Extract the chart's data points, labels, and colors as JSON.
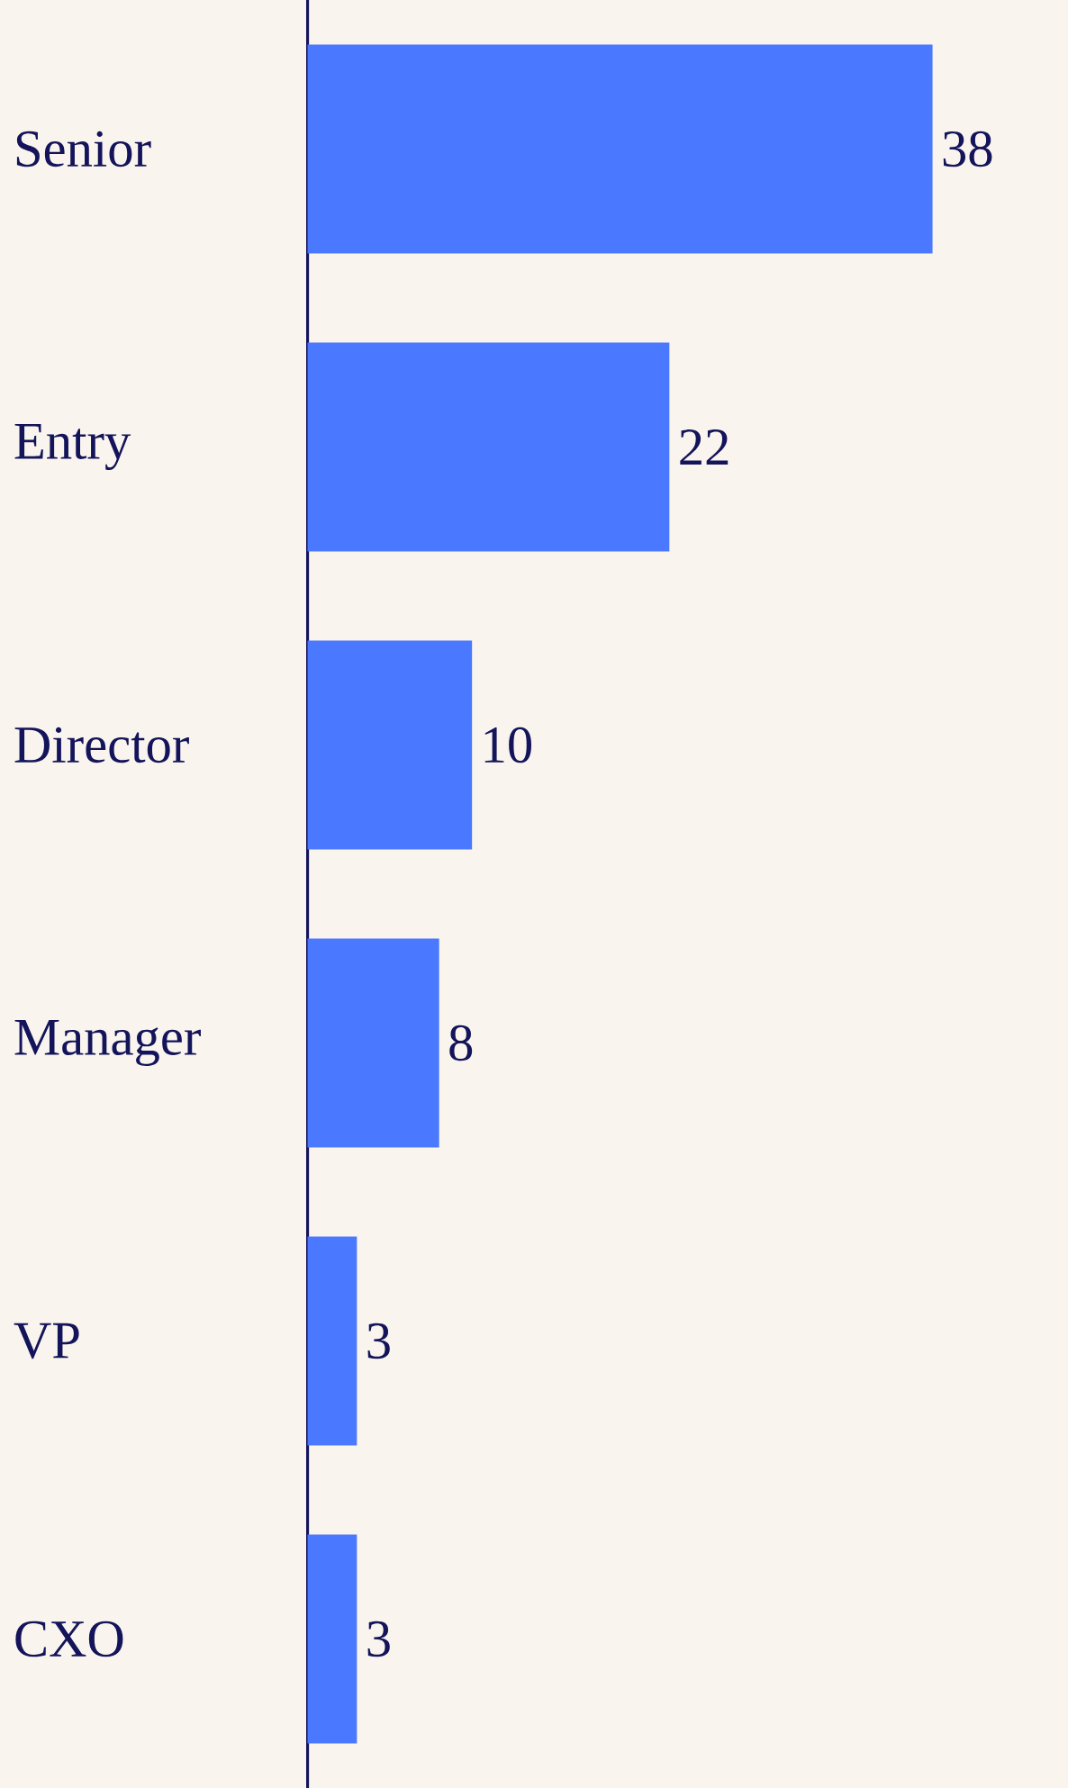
{
  "chart_data": {
    "type": "bar",
    "orientation": "horizontal",
    "categories": [
      "Senior",
      "Entry",
      "Director",
      "Manager",
      "VP",
      "CXO"
    ],
    "values": [
      38,
      22,
      10,
      8,
      3,
      3
    ],
    "color": "#4a78ff",
    "data_labels": true,
    "tick_labels": "y"
  }
}
